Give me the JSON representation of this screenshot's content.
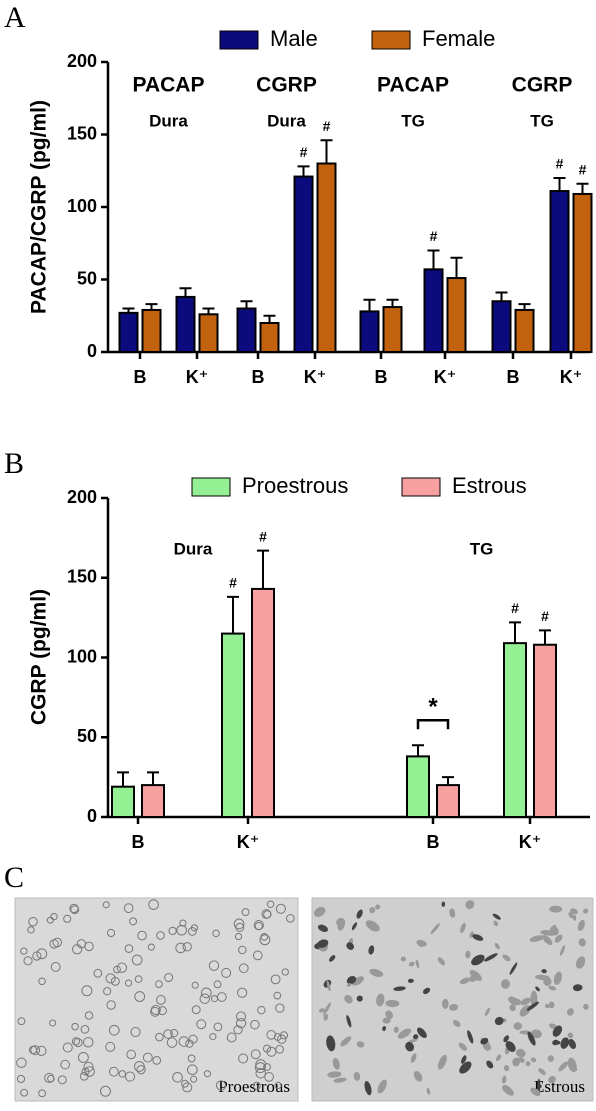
{
  "chart_data": [
    {
      "type": "bar",
      "panel_label": "A",
      "ylabel": "PACAP/CGRP (pg/ml)",
      "categories": [
        "B",
        "K⁺",
        "B",
        "K⁺",
        "B",
        "K⁺",
        "B",
        "K⁺"
      ],
      "groups": [
        {
          "name": "PACAP",
          "tissue": "Dura"
        },
        {
          "name": "CGRP",
          "tissue": "Dura"
        },
        {
          "name": "PACAP",
          "tissue": "TG"
        },
        {
          "name": "CGRP",
          "tissue": "TG"
        }
      ],
      "series": [
        {
          "name": "Male",
          "color": "#0b0b7e",
          "values": [
            27,
            38,
            30,
            121,
            28,
            57,
            35,
            111
          ],
          "errors": [
            3,
            6,
            5,
            7,
            8,
            13,
            6,
            9
          ],
          "markers": [
            null,
            null,
            null,
            "#",
            null,
            "#",
            null,
            "#"
          ]
        },
        {
          "name": "Female",
          "color": "#c2620f",
          "values": [
            29,
            26,
            20,
            130,
            31,
            51,
            29,
            109
          ],
          "errors": [
            4,
            4,
            5,
            16,
            5,
            14,
            4,
            7
          ],
          "markers": [
            null,
            null,
            null,
            "#",
            null,
            null,
            null,
            "#"
          ]
        }
      ],
      "ylim": [
        0,
        200
      ],
      "yticks": [
        0,
        50,
        100,
        150,
        200
      ]
    },
    {
      "type": "bar",
      "panel_label": "B",
      "ylabel": "CGRP (pg/ml)",
      "categories": [
        "B",
        "K⁺",
        "B",
        "K⁺"
      ],
      "groups": [
        {
          "tissue": "Dura"
        },
        {
          "tissue": "TG"
        }
      ],
      "series": [
        {
          "name": "Proestrous",
          "color": "#93f093",
          "values": [
            19,
            115,
            38,
            109
          ],
          "errors": [
            9,
            23,
            7,
            13
          ],
          "markers": [
            null,
            "#",
            null,
            "#"
          ]
        },
        {
          "name": "Estrous",
          "color": "#f7a0a0",
          "values": [
            20,
            143,
            20,
            108
          ],
          "errors": [
            8,
            24,
            5,
            9
          ],
          "markers": [
            null,
            "#",
            null,
            "#"
          ]
        }
      ],
      "significance": {
        "label": "*",
        "category": 2
      },
      "ylim": [
        0,
        200
      ],
      "yticks": [
        0,
        50,
        100,
        150,
        200
      ]
    }
  ],
  "panel_c": {
    "panel_label": "C",
    "images": [
      {
        "caption": "Proestrous"
      },
      {
        "caption": "Estrous"
      }
    ]
  }
}
